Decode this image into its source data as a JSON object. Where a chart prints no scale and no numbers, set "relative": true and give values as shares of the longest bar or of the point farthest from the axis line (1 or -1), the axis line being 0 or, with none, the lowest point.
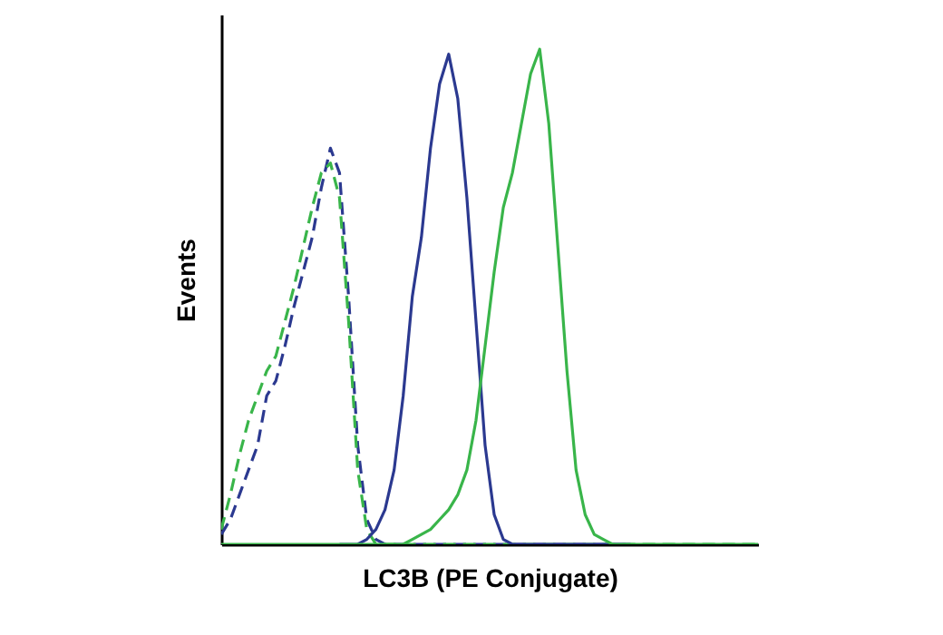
{
  "chart_data": {
    "type": "line",
    "xlabel": "LC3B (PE Conjugate)",
    "ylabel": "Events",
    "relative": true,
    "grid": false,
    "marker": "none",
    "categories": [
      null,
      null,
      null,
      null,
      null,
      null,
      null,
      null,
      null,
      null,
      null,
      null,
      null,
      null,
      null,
      null,
      null,
      null,
      null,
      null,
      null,
      null,
      null,
      null,
      null,
      null,
      null,
      null,
      null,
      null,
      null,
      null,
      null,
      null,
      null,
      null,
      null,
      null,
      null,
      null,
      null,
      null,
      null,
      null,
      null,
      null,
      null,
      null,
      null,
      null,
      null,
      null,
      null,
      null,
      null,
      null,
      null,
      null,
      null,
      null
    ],
    "series": [
      {
        "color": "#2b3990",
        "line_style": "dashed",
        "values": [
          0.02,
          0.05,
          0.1,
          0.15,
          0.2,
          0.3,
          0.33,
          0.4,
          0.48,
          0.55,
          0.62,
          0.72,
          0.8,
          0.75,
          0.5,
          0.2,
          0.05,
          0.01,
          0,
          0,
          0,
          0,
          0,
          0,
          0,
          0,
          0,
          0,
          0,
          0,
          0,
          0,
          0,
          0,
          0,
          0,
          0,
          0,
          0,
          0,
          0,
          0,
          0,
          0,
          0,
          0,
          null,
          null,
          null,
          null,
          null,
          null,
          null,
          null,
          null,
          null,
          null,
          null,
          null,
          null
        ]
      },
      {
        "color": "#39b54a",
        "line_style": "dashed",
        "values": [
          0.03,
          0.1,
          0.18,
          0.25,
          0.3,
          0.35,
          0.38,
          0.45,
          0.52,
          0.6,
          0.68,
          0.75,
          0.77,
          0.7,
          0.45,
          0.15,
          0.03,
          0,
          0,
          0,
          0,
          0,
          0,
          0,
          0,
          0,
          0,
          0,
          0,
          0,
          0,
          0,
          0,
          0,
          0,
          0,
          0,
          0,
          0,
          0,
          0,
          0,
          0,
          0,
          0,
          0,
          0,
          0,
          0,
          0,
          0,
          0,
          0,
          0,
          0,
          0,
          0,
          0,
          0,
          0
        ]
      },
      {
        "color": "#2b3990",
        "line_style": "solid",
        "values": [
          null,
          null,
          null,
          null,
          null,
          null,
          null,
          null,
          null,
          null,
          null,
          null,
          null,
          0,
          0,
          0,
          0.01,
          0.03,
          0.07,
          0.15,
          0.3,
          0.5,
          0.62,
          0.8,
          0.93,
          0.99,
          0.9,
          0.7,
          0.45,
          0.2,
          0.06,
          0.01,
          0,
          0,
          0,
          0,
          0,
          0,
          0,
          0,
          0,
          0,
          0,
          0,
          0,
          0,
          null,
          null,
          null,
          null,
          null,
          null,
          null,
          null,
          null,
          null,
          null,
          null,
          null,
          null
        ]
      },
      {
        "color": "#39b54a",
        "line_style": "solid",
        "values": [
          0,
          0,
          0,
          0,
          0,
          0,
          0,
          0,
          0,
          0,
          0,
          0,
          0,
          0,
          0,
          0,
          0,
          0,
          0,
          0,
          0,
          0.01,
          0.02,
          0.03,
          0.05,
          0.07,
          0.1,
          0.15,
          0.25,
          0.4,
          0.55,
          0.68,
          0.75,
          0.85,
          0.95,
          1,
          0.85,
          0.6,
          0.35,
          0.15,
          0.06,
          0.02,
          0.01,
          0,
          0,
          0,
          0,
          0,
          0,
          0,
          0,
          0,
          0,
          0,
          0,
          0,
          0,
          0,
          0,
          0
        ]
      }
    ]
  }
}
